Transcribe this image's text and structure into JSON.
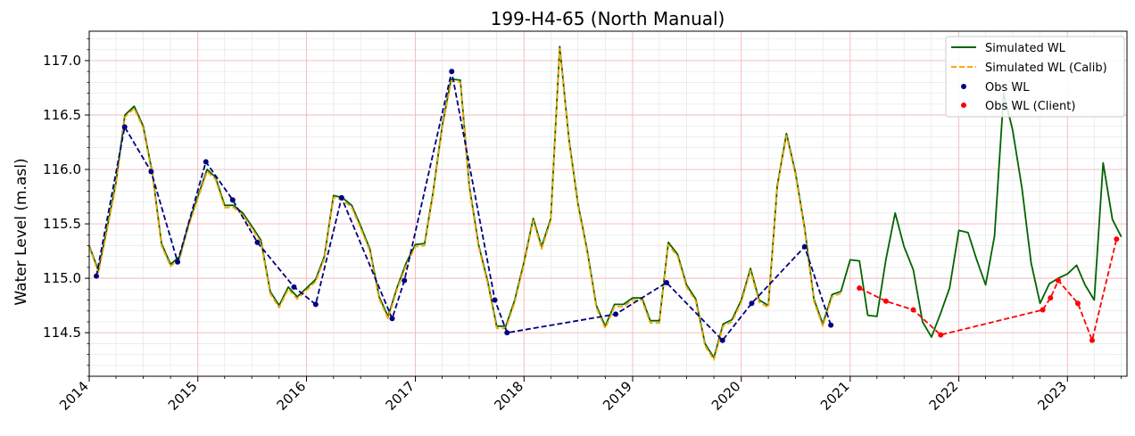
{
  "chart_data": {
    "type": "line",
    "title": "199-H4-65 (North Manual)",
    "xlabel": "",
    "ylabel": "Water Level (m.asl)",
    "xlim": [
      "2014-01-01",
      "2023-07-20"
    ],
    "ylim": [
      114.1,
      117.27
    ],
    "x_ticks": [
      "2014",
      "2015",
      "2016",
      "2017",
      "2018",
      "2019",
      "2020",
      "2021",
      "2022",
      "2023"
    ],
    "y_ticks": [
      "114.5",
      "115.0",
      "115.5",
      "116.0",
      "116.5",
      "117.0"
    ],
    "grid": true,
    "legend_position": "top-right",
    "colors": {
      "simulated": "#006400",
      "simulated_calib": "#FFA500",
      "obs": "#000080",
      "obs_client": "#FF0000",
      "major_grid": "#f4b8b8",
      "minor_grid": "#e6e6e6"
    },
    "legend": [
      {
        "label": "Simulated WL",
        "style": "line",
        "color": "#006400"
      },
      {
        "label": "Simulated WL (Calib)",
        "style": "dashed",
        "color": "#FFA500"
      },
      {
        "label": "Obs WL",
        "style": "marker",
        "color": "#000080"
      },
      {
        "label": "Obs WL (Client)",
        "style": "marker",
        "color": "#FF0000"
      }
    ],
    "series": [
      {
        "name": "Simulated WL",
        "style": "line",
        "color": "#006400",
        "x": [
          "2014-01-01",
          "2014-02-01",
          "2014-03-01",
          "2014-04-01",
          "2014-05-01",
          "2014-06-01",
          "2014-07-01",
          "2014-08-01",
          "2014-09-01",
          "2014-10-01",
          "2014-11-01",
          "2014-12-01",
          "2015-01-01",
          "2015-02-01",
          "2015-03-01",
          "2015-04-01",
          "2015-05-01",
          "2015-06-01",
          "2015-07-01",
          "2015-08-01",
          "2015-09-01",
          "2015-10-01",
          "2015-11-01",
          "2015-12-01",
          "2016-01-01",
          "2016-02-01",
          "2016-03-01",
          "2016-04-01",
          "2016-05-01",
          "2016-06-01",
          "2016-07-01",
          "2016-08-01",
          "2016-09-01",
          "2016-10-01",
          "2016-11-01",
          "2016-12-01",
          "2017-01-01",
          "2017-02-01",
          "2017-03-01",
          "2017-04-01",
          "2017-05-01",
          "2017-06-01",
          "2017-07-01",
          "2017-08-01",
          "2017-09-01",
          "2017-10-01",
          "2017-11-01",
          "2017-12-01",
          "2018-01-01",
          "2018-02-01",
          "2018-03-01",
          "2018-04-01",
          "2018-05-01",
          "2018-06-01",
          "2018-07-01",
          "2018-08-01",
          "2018-09-01",
          "2018-10-01",
          "2018-11-01",
          "2018-12-01",
          "2019-01-01",
          "2019-02-01",
          "2019-03-01",
          "2019-04-01",
          "2019-05-01",
          "2019-06-01",
          "2019-07-01",
          "2019-08-01",
          "2019-09-01",
          "2019-10-01",
          "2019-11-01",
          "2019-12-01",
          "2020-01-01",
          "2020-02-01",
          "2020-03-01",
          "2020-04-01",
          "2020-05-01",
          "2020-06-01",
          "2020-07-01",
          "2020-08-01",
          "2020-09-01",
          "2020-10-01",
          "2020-11-01",
          "2020-12-01",
          "2021-01-01",
          "2021-02-01",
          "2021-03-01",
          "2021-04-01",
          "2021-05-01",
          "2021-06-01",
          "2021-07-01",
          "2021-08-01",
          "2021-09-01",
          "2021-10-01",
          "2021-11-01",
          "2021-12-01",
          "2022-01-01",
          "2022-02-01",
          "2022-03-01",
          "2022-04-01",
          "2022-05-01",
          "2022-06-01",
          "2022-07-01",
          "2022-08-01",
          "2022-09-01",
          "2022-10-01",
          "2022-11-01",
          "2022-12-01",
          "2023-01-01",
          "2023-02-01",
          "2023-03-01",
          "2023-04-01",
          "2023-05-01",
          "2023-06-01",
          "2023-07-01"
        ],
        "y": [
          115.3,
          115.07,
          115.45,
          115.88,
          116.5,
          116.58,
          116.4,
          115.97,
          115.32,
          115.13,
          115.2,
          115.5,
          115.75,
          116.0,
          115.93,
          115.67,
          115.67,
          115.6,
          115.48,
          115.35,
          114.88,
          114.75,
          114.92,
          114.83,
          114.91,
          114.99,
          115.2,
          115.76,
          115.74,
          115.67,
          115.48,
          115.27,
          114.83,
          114.65,
          114.92,
          115.14,
          115.31,
          115.32,
          115.78,
          116.4,
          116.83,
          116.82,
          115.85,
          115.31,
          114.97,
          114.56,
          114.56,
          114.8,
          115.15,
          115.55,
          115.29,
          115.55,
          117.13,
          116.28,
          115.69,
          115.26,
          114.75,
          114.56,
          114.76,
          114.76,
          114.82,
          114.82,
          114.61,
          114.61,
          115.33,
          115.22,
          114.94,
          114.81,
          114.4,
          114.27,
          114.58,
          114.62,
          114.8,
          115.09,
          114.8,
          114.75,
          115.85,
          116.33,
          115.97,
          115.46,
          114.81,
          114.58,
          114.85,
          114.88,
          115.17,
          115.16,
          114.66,
          114.65,
          115.17,
          115.6,
          115.29,
          115.08,
          114.6,
          114.46,
          114.68,
          114.91,
          115.44,
          115.42,
          115.18,
          114.94,
          115.39,
          116.7,
          116.36,
          115.83,
          115.14,
          114.77,
          114.95,
          115.0,
          115.04,
          115.12,
          114.94,
          114.8,
          116.06,
          115.54,
          115.38
        ]
      },
      {
        "name": "Simulated WL (Calib)",
        "style": "dashed",
        "color": "#FFA500",
        "x": [
          "2014-01-01",
          "2014-02-01",
          "2014-03-01",
          "2014-04-01",
          "2014-05-01",
          "2014-06-01",
          "2014-07-01",
          "2014-08-01",
          "2014-09-01",
          "2014-10-01",
          "2014-11-01",
          "2014-12-01",
          "2015-01-01",
          "2015-02-01",
          "2015-03-01",
          "2015-04-01",
          "2015-05-01",
          "2015-06-01",
          "2015-07-01",
          "2015-08-01",
          "2015-09-01",
          "2015-10-01",
          "2015-11-01",
          "2015-12-01",
          "2016-01-01",
          "2016-02-01",
          "2016-03-01",
          "2016-04-01",
          "2016-05-01",
          "2016-06-01",
          "2016-07-01",
          "2016-08-01",
          "2016-09-01",
          "2016-10-01",
          "2016-11-01",
          "2016-12-01",
          "2017-01-01",
          "2017-02-01",
          "2017-03-01",
          "2017-04-01",
          "2017-05-01",
          "2017-06-01",
          "2017-07-01",
          "2017-08-01",
          "2017-09-01",
          "2017-10-01",
          "2017-11-01",
          "2017-12-01",
          "2018-01-01",
          "2018-02-01",
          "2018-03-01",
          "2018-04-01",
          "2018-05-01",
          "2018-06-01",
          "2018-07-01",
          "2018-08-01",
          "2018-09-01",
          "2018-10-01",
          "2018-11-01",
          "2018-12-01",
          "2019-01-01",
          "2019-02-01",
          "2019-03-01",
          "2019-04-01",
          "2019-05-01",
          "2019-06-01",
          "2019-07-01",
          "2019-08-01",
          "2019-09-01",
          "2019-10-01",
          "2019-11-01",
          "2019-12-01",
          "2020-01-01",
          "2020-02-01",
          "2020-03-01",
          "2020-04-01",
          "2020-05-01",
          "2020-06-01",
          "2020-07-01",
          "2020-08-01",
          "2020-09-01",
          "2020-10-01",
          "2020-11-01",
          "2020-12-01"
        ],
        "y": [
          115.29,
          115.05,
          115.43,
          115.86,
          116.48,
          116.56,
          116.38,
          115.95,
          115.3,
          115.11,
          115.18,
          115.48,
          115.73,
          115.98,
          115.91,
          115.65,
          115.65,
          115.58,
          115.46,
          115.33,
          114.86,
          114.73,
          114.9,
          114.81,
          114.89,
          114.97,
          115.18,
          115.74,
          115.72,
          115.65,
          115.46,
          115.25,
          114.81,
          114.63,
          114.9,
          115.12,
          115.29,
          115.3,
          115.76,
          116.38,
          116.81,
          116.8,
          115.83,
          115.29,
          114.95,
          114.54,
          114.54,
          114.78,
          115.13,
          115.53,
          115.27,
          115.53,
          117.11,
          116.26,
          115.67,
          115.24,
          114.73,
          114.54,
          114.74,
          114.74,
          114.8,
          114.8,
          114.59,
          114.59,
          115.31,
          115.2,
          114.92,
          114.79,
          114.38,
          114.25,
          114.56,
          114.6,
          114.78,
          115.07,
          114.78,
          114.73,
          115.83,
          116.31,
          115.95,
          115.44,
          114.79,
          114.56,
          114.83,
          114.86
        ]
      },
      {
        "name": "Obs WL",
        "style": "dashed-marker",
        "color": "#000080",
        "x": [
          "2014-01-25",
          "2014-04-30",
          "2014-07-28",
          "2014-10-25",
          "2015-01-28",
          "2015-04-28",
          "2015-07-20",
          "2015-11-20",
          "2016-02-01",
          "2016-04-28",
          "2016-10-15",
          "2016-11-25",
          "2017-05-03",
          "2017-09-25",
          "2017-11-05",
          "2018-11-05",
          "2019-04-25",
          "2019-10-30",
          "2020-02-05",
          "2020-08-01",
          "2020-10-28"
        ],
        "y": [
          115.02,
          116.39,
          115.98,
          115.15,
          116.07,
          115.72,
          115.33,
          114.92,
          114.76,
          115.74,
          114.63,
          114.98,
          116.9,
          114.8,
          114.5,
          114.67,
          114.96,
          114.43,
          114.77,
          115.29,
          114.57
        ]
      },
      {
        "name": "Obs WL (Client)",
        "style": "dashed-marker",
        "color": "#FF0000",
        "x": [
          "2021-02-01",
          "2021-05-01",
          "2021-08-01",
          "2021-11-01",
          "2022-10-10",
          "2022-11-05",
          "2022-12-01",
          "2023-02-05",
          "2023-03-25",
          "2023-06-15"
        ],
        "y": [
          114.91,
          114.79,
          114.71,
          114.48,
          114.71,
          114.82,
          114.98,
          114.77,
          114.43,
          115.36
        ]
      }
    ]
  }
}
